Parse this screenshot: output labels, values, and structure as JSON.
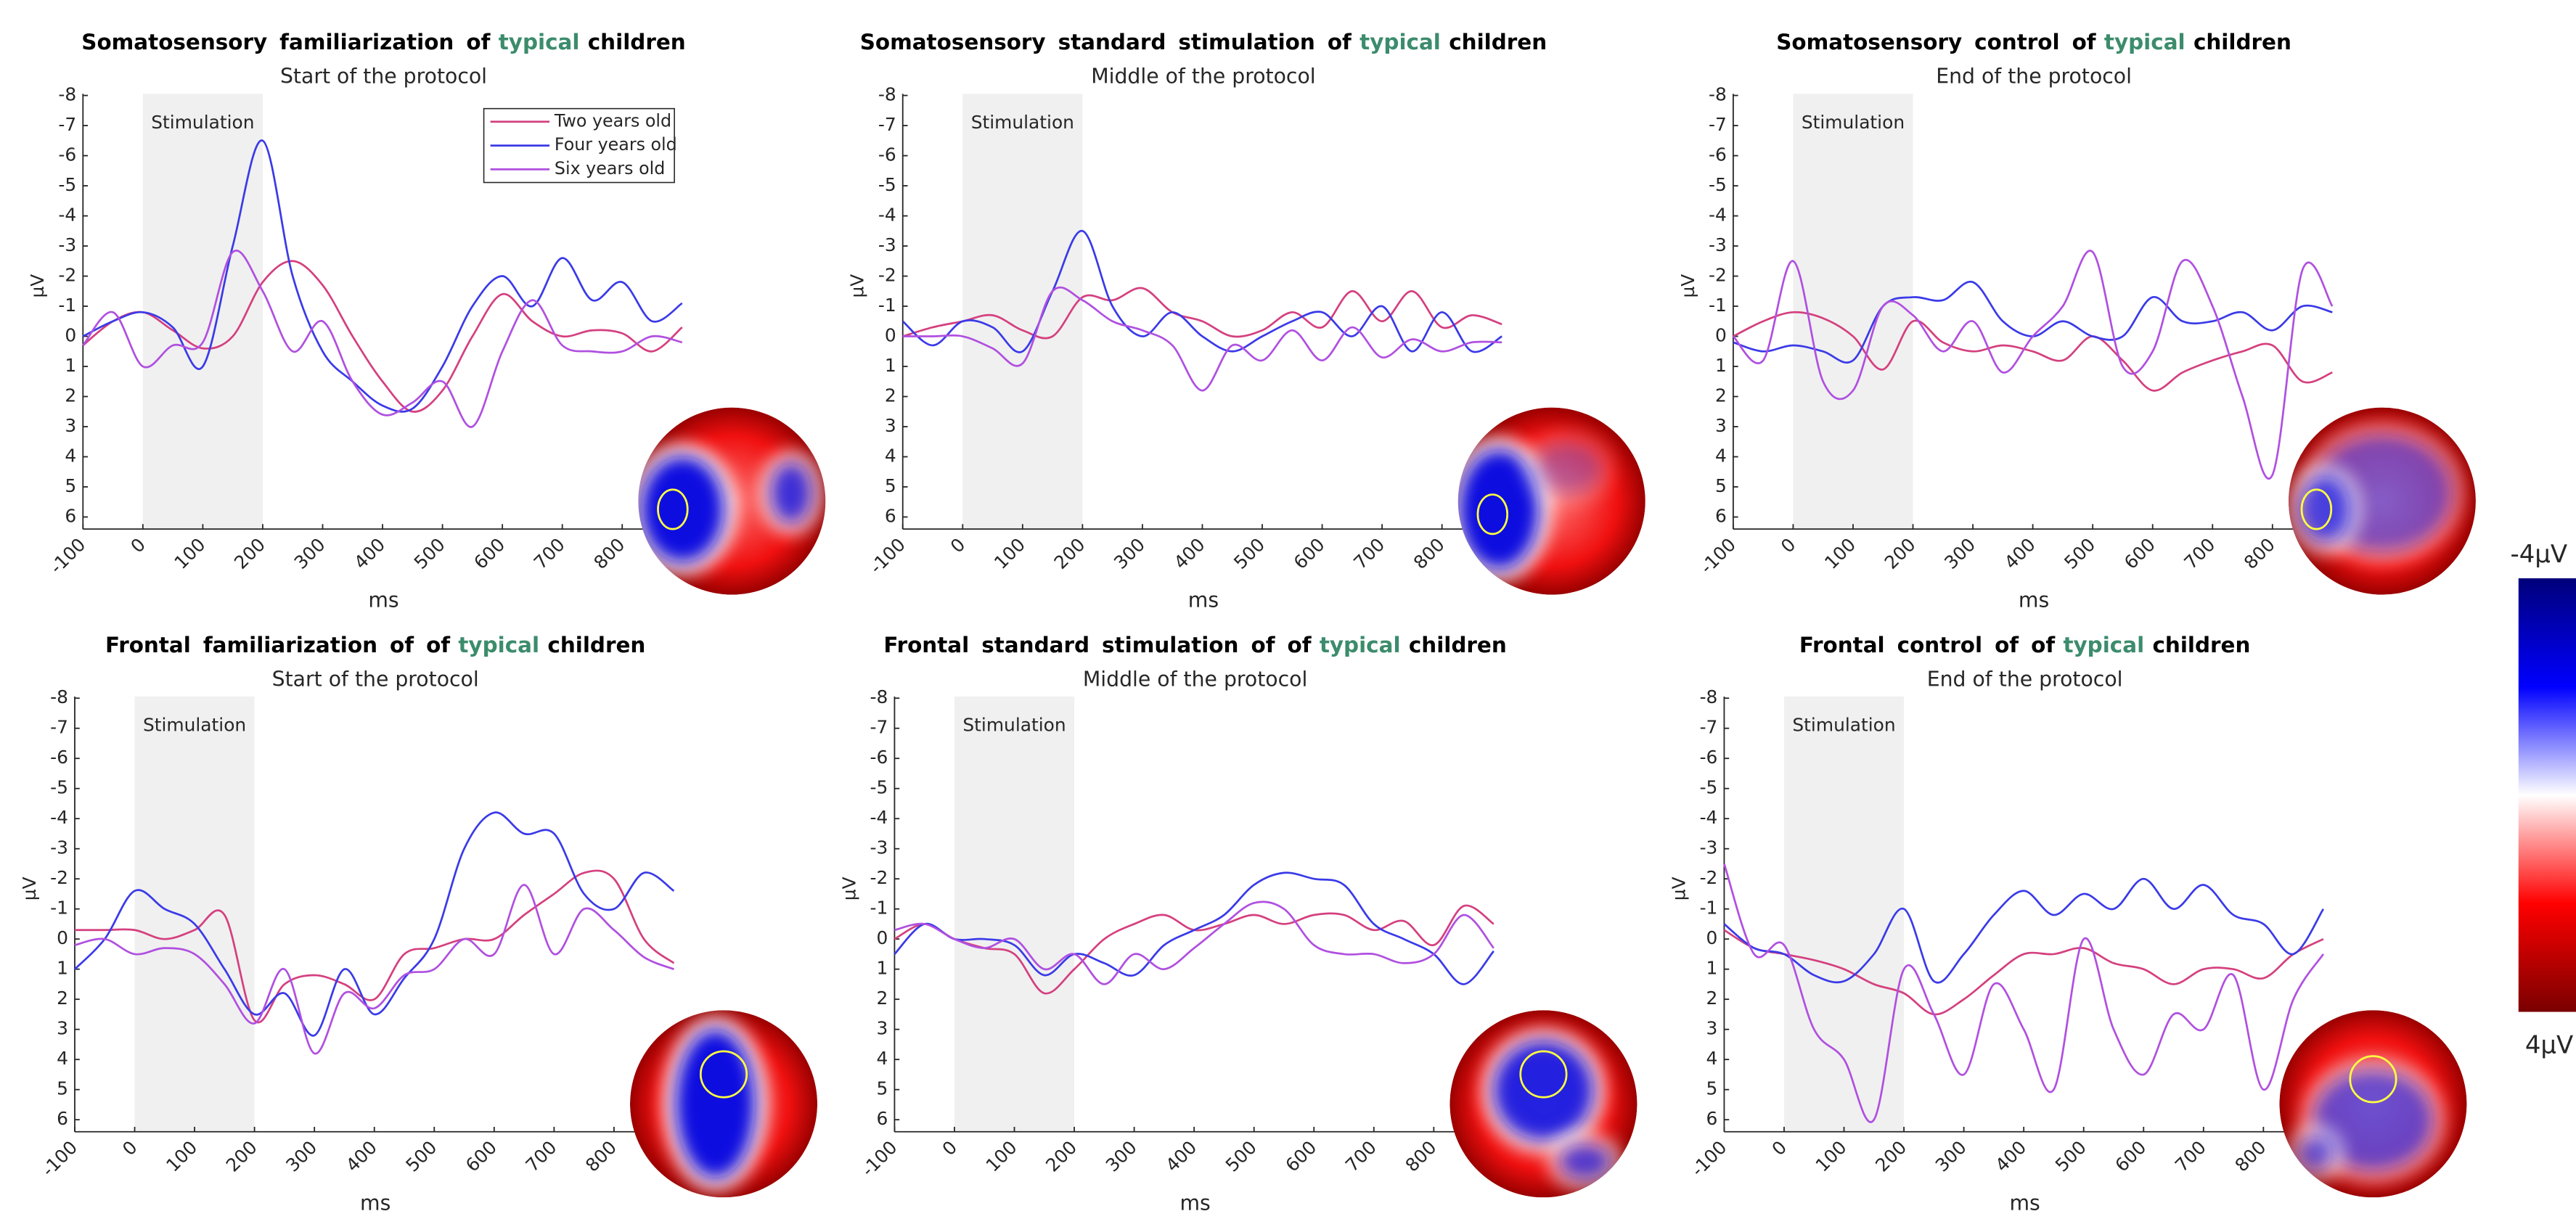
{
  "chart_data": [
    {
      "type": "line",
      "title": [
        "Somatosensory familiarization of",
        "typical",
        "children"
      ],
      "subtitle": "Start of the protocol",
      "x_label": "ms",
      "y_label": "µV",
      "x": [
        -100,
        -50,
        0,
        50,
        100,
        150,
        200,
        250,
        300,
        350,
        400,
        450,
        500,
        550,
        600,
        650,
        700,
        750,
        800,
        850,
        900
      ],
      "xlim": [
        -100,
        920
      ],
      "ylim": [
        -8,
        6.4
      ],
      "y_reversed": true,
      "xticks": [
        -100,
        0,
        100,
        200,
        300,
        400,
        500,
        600,
        700,
        800
      ],
      "yticks": [
        -8,
        -7,
        -6,
        -5,
        -4,
        -3,
        -2,
        -1,
        0,
        1,
        2,
        3,
        4,
        5,
        6
      ],
      "shaded_region": {
        "x": [
          0,
          200
        ],
        "label": "Stimulation"
      },
      "legend": "upper right",
      "series": [
        {
          "name": "Two years old",
          "color": "#d4407f",
          "values": [
            0.3,
            -0.5,
            -0.8,
            -0.2,
            0.4,
            0,
            -1.8,
            -2.5,
            -1.7,
            0,
            1.5,
            2.5,
            1.8,
            0,
            -1.4,
            -0.5,
            0,
            -0.2,
            -0.1,
            0.5,
            -0.3
          ]
        },
        {
          "name": "Four years old",
          "color": "#3a3ae8",
          "values": [
            0,
            -0.5,
            -0.8,
            -0.3,
            1,
            -3,
            -6.5,
            -2,
            0.5,
            1.5,
            2.3,
            2.4,
            1,
            -1,
            -2,
            -1,
            -2.6,
            -1.2,
            -1.8,
            -0.5,
            -1.1
          ]
        },
        {
          "name": "Six years old",
          "color": "#b050e0",
          "values": [
            0.3,
            -0.8,
            1,
            0.3,
            0.2,
            -2.8,
            -1.5,
            0.5,
            -0.5,
            1.5,
            2.6,
            2.2,
            1.5,
            3,
            0.5,
            -1.2,
            0.3,
            0.5,
            0.5,
            0,
            0.2
          ]
        }
      ]
    },
    {
      "type": "line",
      "title": [
        "Somatosensory standard stimulation of",
        "typical",
        "children"
      ],
      "subtitle": "Middle of the protocol",
      "x_label": "ms",
      "y_label": "µV",
      "x": [
        -100,
        -50,
        0,
        50,
        100,
        150,
        200,
        250,
        300,
        350,
        400,
        450,
        500,
        550,
        600,
        650,
        700,
        750,
        800,
        850,
        900
      ],
      "xlim": [
        -100,
        920
      ],
      "ylim": [
        -8,
        6.4
      ],
      "y_reversed": true,
      "xticks": [
        -100,
        0,
        100,
        200,
        300,
        400,
        500,
        600,
        700,
        800
      ],
      "yticks": [
        -8,
        -7,
        -6,
        -5,
        -4,
        -3,
        -2,
        -1,
        0,
        1,
        2,
        3,
        4,
        5,
        6
      ],
      "shaded_region": {
        "x": [
          0,
          200
        ],
        "label": "Stimulation"
      },
      "series": [
        {
          "name": "Two years old",
          "color": "#d4407f",
          "values": [
            0,
            -0.3,
            -0.5,
            -0.7,
            -0.2,
            0,
            -1.3,
            -1.2,
            -1.6,
            -0.8,
            -0.5,
            0,
            -0.2,
            -0.8,
            -0.3,
            -1.5,
            -0.5,
            -1.5,
            -0.3,
            -0.7,
            -0.4
          ]
        },
        {
          "name": "Four years old",
          "color": "#3a3ae8",
          "values": [
            -0.5,
            0.3,
            -0.5,
            -0.3,
            0.5,
            -1.5,
            -3.5,
            -1,
            0,
            -0.8,
            0,
            0.5,
            0,
            -0.5,
            -0.8,
            0,
            -1,
            0.5,
            -0.8,
            0.5,
            0
          ]
        },
        {
          "name": "Six years old",
          "color": "#b050e0",
          "values": [
            0,
            0,
            0,
            0.4,
            0.9,
            -1.5,
            -1.2,
            -0.5,
            -0.2,
            0.3,
            1.8,
            0.3,
            0.8,
            -0.2,
            0.8,
            -0.3,
            0.7,
            0.1,
            0.5,
            0.2,
            0.2
          ]
        }
      ]
    },
    {
      "type": "line",
      "title": [
        "Somatosensory control of",
        "typical",
        "children"
      ],
      "subtitle": "End of the protocol",
      "x_label": "ms",
      "y_label": "µV",
      "x": [
        -100,
        -50,
        0,
        50,
        100,
        150,
        200,
        250,
        300,
        350,
        400,
        450,
        500,
        550,
        600,
        650,
        700,
        750,
        800,
        850,
        900
      ],
      "xlim": [
        -100,
        920
      ],
      "ylim": [
        -8,
        6.4
      ],
      "y_reversed": true,
      "xticks": [
        -100,
        0,
        100,
        200,
        300,
        400,
        500,
        600,
        700,
        800
      ],
      "yticks": [
        -8,
        -7,
        -6,
        -5,
        -4,
        -3,
        -2,
        -1,
        0,
        1,
        2,
        3,
        4,
        5,
        6
      ],
      "shaded_region": {
        "x": [
          0,
          200
        ],
        "label": "Stimulation"
      },
      "series": [
        {
          "name": "Two years old",
          "color": "#d4407f",
          "values": [
            0,
            -0.5,
            -0.8,
            -0.6,
            0,
            1.1,
            -0.5,
            0.2,
            0.5,
            0.3,
            0.5,
            0.8,
            0,
            0.8,
            1.8,
            1.2,
            0.8,
            0.5,
            0.3,
            1.5,
            1.2
          ]
        },
        {
          "name": "Four years old",
          "color": "#3a3ae8",
          "values": [
            0.2,
            0.5,
            0.3,
            0.5,
            0.8,
            -1,
            -1.3,
            -1.2,
            -1.8,
            -0.5,
            0,
            -0.5,
            0,
            0,
            -1.3,
            -0.5,
            -0.5,
            -0.8,
            -0.2,
            -1,
            -0.8
          ]
        },
        {
          "name": "Six years old",
          "color": "#b050e0",
          "values": [
            0,
            0.8,
            -2.5,
            1.5,
            1.8,
            -1,
            -0.7,
            0.5,
            -0.5,
            1.2,
            0,
            -1,
            -2.8,
            1,
            0.5,
            -2.5,
            -1,
            2,
            4.6,
            -2.2,
            -1
          ]
        }
      ]
    },
    {
      "type": "line",
      "title": [
        "Frontal familiarization of of",
        "typical",
        "children"
      ],
      "subtitle": "Start of the protocol",
      "x_label": "ms",
      "y_label": "µV",
      "x": [
        -100,
        -50,
        0,
        50,
        100,
        150,
        200,
        250,
        300,
        350,
        400,
        450,
        500,
        550,
        600,
        650,
        700,
        750,
        800,
        850,
        900
      ],
      "xlim": [
        -100,
        920
      ],
      "ylim": [
        -8,
        6.4
      ],
      "y_reversed": true,
      "xticks": [
        -100,
        0,
        100,
        200,
        300,
        400,
        500,
        600,
        700,
        800
      ],
      "yticks": [
        -8,
        -7,
        -6,
        -5,
        -4,
        -3,
        -2,
        -1,
        0,
        1,
        2,
        3,
        4,
        5,
        6
      ],
      "shaded_region": {
        "x": [
          0,
          200
        ],
        "label": "Stimulation"
      },
      "series": [
        {
          "name": "Two years old",
          "color": "#d4407f",
          "values": [
            -0.3,
            -0.3,
            -0.3,
            0,
            -0.3,
            -0.8,
            2.7,
            1.5,
            1.2,
            1.5,
            2,
            0.5,
            0.3,
            0,
            0,
            -0.8,
            -1.5,
            -2.2,
            -2,
            0,
            0.8
          ]
        },
        {
          "name": "Four years old",
          "color": "#3a3ae8",
          "values": [
            1,
            0,
            -1.6,
            -1,
            -0.5,
            1,
            2.5,
            1.8,
            3.2,
            1,
            2.5,
            1.3,
            0,
            -3,
            -4.2,
            -3.5,
            -3.5,
            -1.5,
            -1,
            -2.2,
            -1.6
          ]
        },
        {
          "name": "Six years old",
          "color": "#b050e0",
          "values": [
            0.2,
            0,
            0.5,
            0.3,
            0.5,
            1.5,
            2.8,
            1,
            3.8,
            1.8,
            2.3,
            1.2,
            1,
            0,
            0.5,
            -1.8,
            0.5,
            -1,
            -0.3,
            0.6,
            1
          ]
        }
      ]
    },
    {
      "type": "line",
      "title": [
        "Frontal standard stimulation of of",
        "typical",
        "children"
      ],
      "subtitle": "Middle of the protocol",
      "x_label": "ms",
      "y_label": "µV",
      "x": [
        -100,
        -50,
        0,
        50,
        100,
        150,
        200,
        250,
        300,
        350,
        400,
        450,
        500,
        550,
        600,
        650,
        700,
        750,
        800,
        850,
        900
      ],
      "xlim": [
        -100,
        920
      ],
      "ylim": [
        -8,
        6.4
      ],
      "y_reversed": true,
      "xticks": [
        -100,
        0,
        100,
        200,
        300,
        400,
        500,
        600,
        700,
        800
      ],
      "yticks": [
        -8,
        -7,
        -6,
        -5,
        -4,
        -3,
        -2,
        -1,
        0,
        1,
        2,
        3,
        4,
        5,
        6
      ],
      "shaded_region": {
        "x": [
          0,
          200
        ],
        "label": "Stimulation"
      },
      "series": [
        {
          "name": "Two years old",
          "color": "#d4407f",
          "values": [
            0,
            -0.5,
            0,
            0.3,
            0.5,
            1.8,
            1,
            0,
            -0.5,
            -0.8,
            -0.3,
            -0.5,
            -0.8,
            -0.5,
            -0.8,
            -0.8,
            -0.3,
            -0.6,
            0.2,
            -1.1,
            -0.5
          ]
        },
        {
          "name": "Four years old",
          "color": "#3a3ae8",
          "values": [
            0.5,
            -0.5,
            0,
            0,
            0.2,
            1.2,
            0.5,
            0.8,
            1.2,
            0.2,
            -0.3,
            -0.8,
            -1.8,
            -2.2,
            -2,
            -1.8,
            -0.5,
            0,
            0.5,
            1.5,
            0.4
          ]
        },
        {
          "name": "Six years old",
          "color": "#b050e0",
          "values": [
            -0.3,
            -0.5,
            0,
            0.3,
            0,
            1,
            0.5,
            1.5,
            0.5,
            1,
            0.3,
            -0.5,
            -1.2,
            -1,
            0.2,
            0.5,
            0.5,
            0.8,
            0.5,
            -0.8,
            0.3
          ]
        }
      ]
    },
    {
      "type": "line",
      "title": [
        "Frontal control of of",
        "typical",
        "children"
      ],
      "subtitle": "End of the protocol",
      "x_label": "ms",
      "y_label": "µV",
      "x": [
        -100,
        -50,
        0,
        50,
        100,
        150,
        200,
        250,
        300,
        350,
        400,
        450,
        500,
        550,
        600,
        650,
        700,
        750,
        800,
        850,
        900
      ],
      "xlim": [
        -100,
        920
      ],
      "ylim": [
        -8,
        6.4
      ],
      "y_reversed": true,
      "xticks": [
        -100,
        0,
        100,
        200,
        300,
        400,
        500,
        600,
        700,
        800
      ],
      "yticks": [
        -8,
        -7,
        -6,
        -5,
        -4,
        -3,
        -2,
        -1,
        0,
        1,
        2,
        3,
        4,
        5,
        6
      ],
      "shaded_region": {
        "x": [
          0,
          200
        ],
        "label": "Stimulation"
      },
      "series": [
        {
          "name": "Two years old",
          "color": "#d4407f",
          "values": [
            -0.3,
            0.3,
            0.5,
            0.7,
            1,
            1.5,
            1.8,
            2.5,
            2,
            1.2,
            0.5,
            0.5,
            0.3,
            0.8,
            1,
            1.5,
            1,
            1,
            1.3,
            0.5,
            0
          ]
        },
        {
          "name": "Four years old",
          "color": "#3a3ae8",
          "values": [
            -0.5,
            0.3,
            0.5,
            1.2,
            1.4,
            0.5,
            -1,
            1.4,
            0.5,
            -0.8,
            -1.6,
            -0.8,
            -1.5,
            -1,
            -2,
            -1,
            -1.8,
            -0.8,
            -0.5,
            0.5,
            -1
          ]
        },
        {
          "name": "Six years old",
          "color": "#b050e0",
          "values": [
            -2.5,
            0.5,
            0.2,
            3,
            4,
            6,
            1,
            2.5,
            4.5,
            1.5,
            3,
            5,
            0,
            3,
            4.5,
            2.5,
            3,
            1.2,
            5,
            2,
            0.5
          ]
        }
      ]
    }
  ],
  "colorbar": {
    "top_label": "-4µV",
    "bottom_label": "4µV"
  }
}
